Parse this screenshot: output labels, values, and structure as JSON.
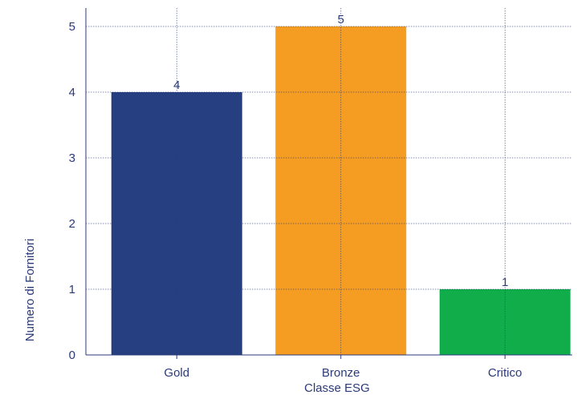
{
  "chart_data": {
    "type": "bar",
    "categories": [
      "Gold",
      "Bronze",
      "Critico"
    ],
    "values": [
      4,
      5,
      1
    ],
    "colors": [
      "#253f80",
      "#f59d22",
      "#12ad4b"
    ],
    "xlabel": "Classe ESG",
    "ylabel": "Numero di Fornitori",
    "ylim": [
      0,
      5
    ],
    "yticks": [
      "0",
      "1",
      "2",
      "3",
      "4",
      "5"
    ],
    "data_labels": [
      "4",
      "5",
      "1"
    ],
    "grid": true,
    "text_color": "#2b3a78"
  }
}
